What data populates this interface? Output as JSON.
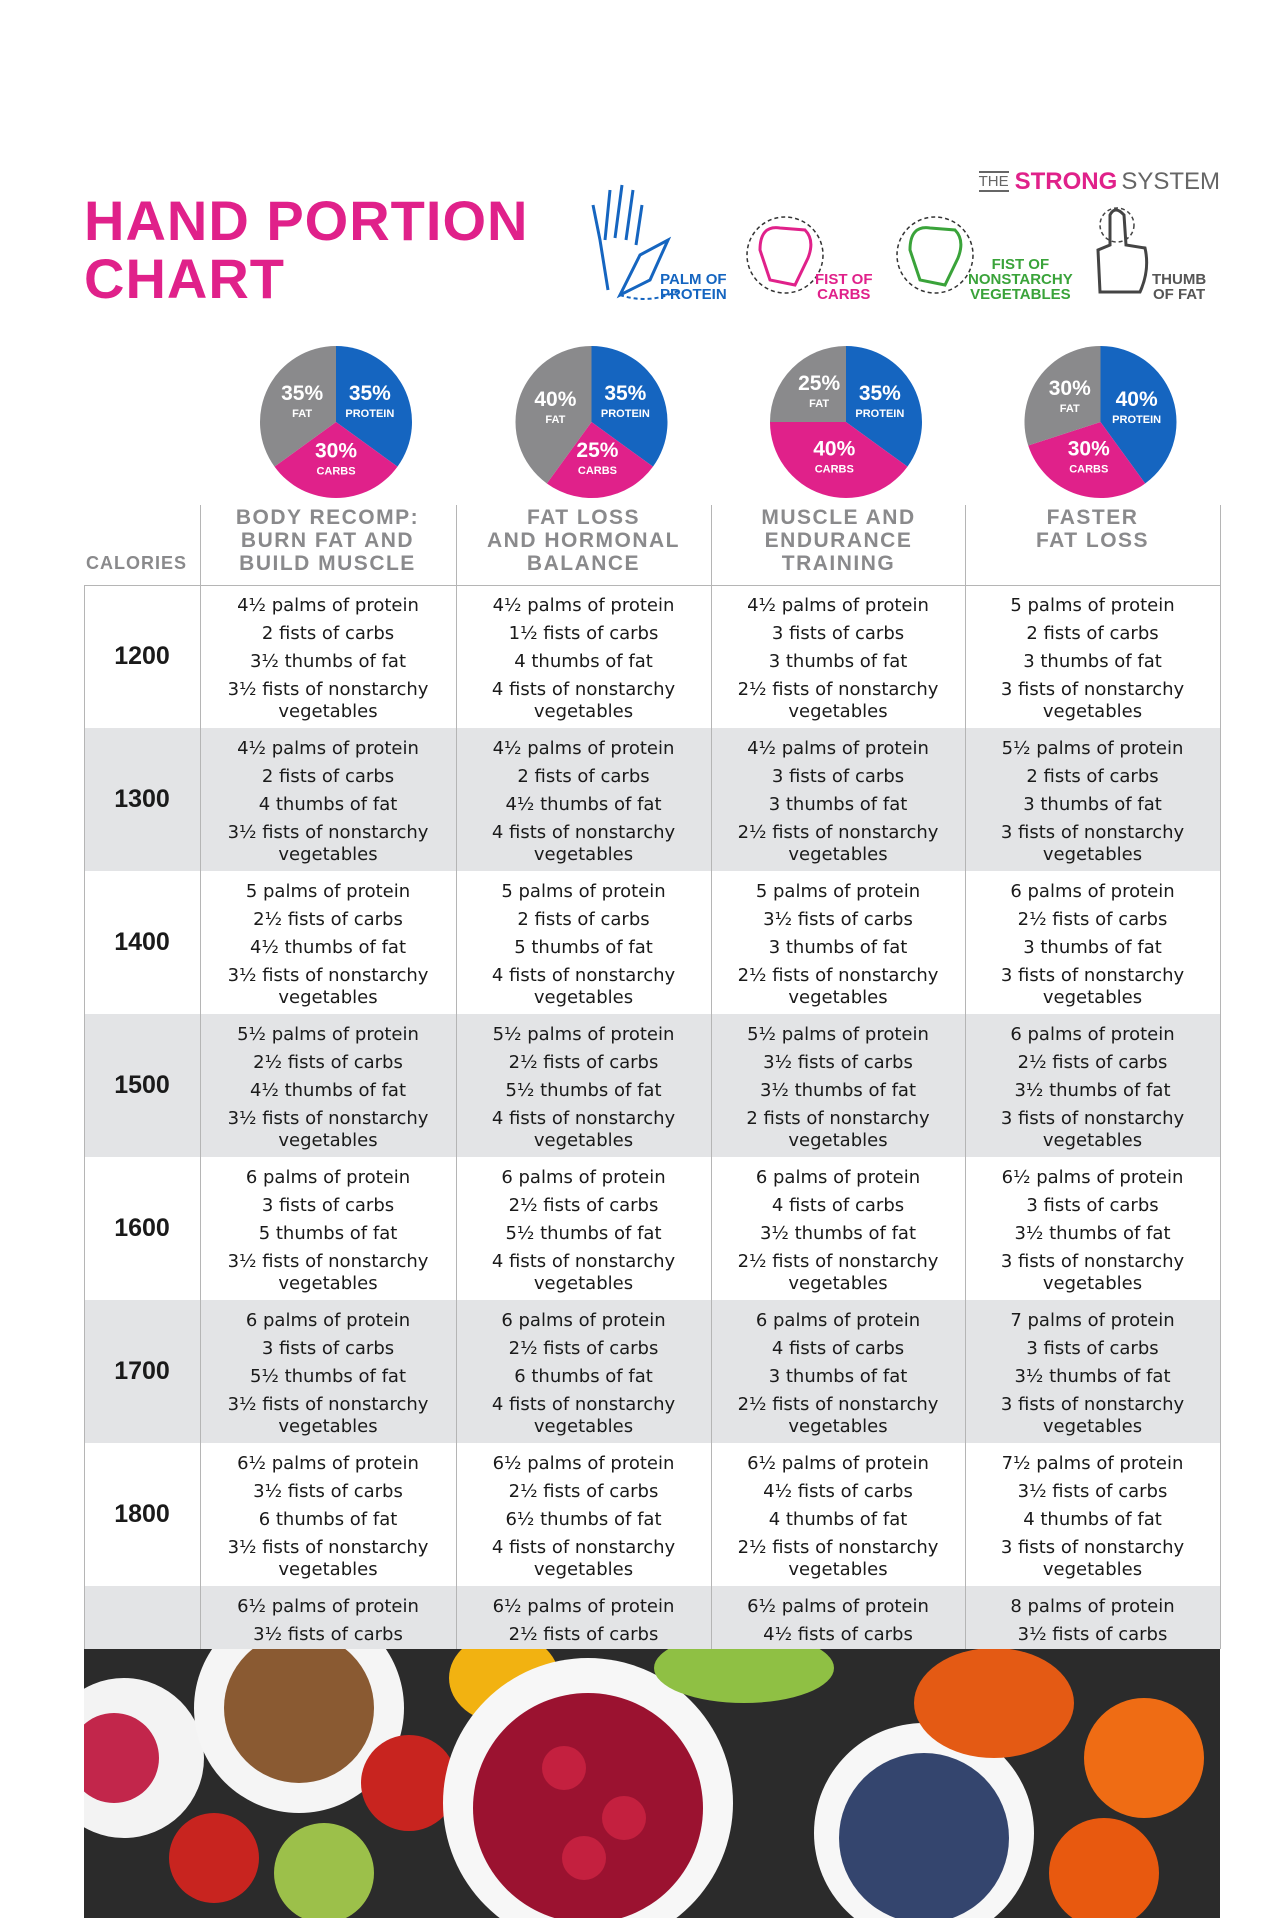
{
  "brand": {
    "prefix": "THE",
    "name": "STRONG",
    "suffix": "SYSTEM"
  },
  "title": [
    "HAND PORTION",
    "CHART"
  ],
  "legend": [
    {
      "lines": [
        "PALM OF",
        "PROTEIN"
      ],
      "color": "#1565c0"
    },
    {
      "lines": [
        "FIST OF",
        "CARBS"
      ],
      "color": "#e0218a"
    },
    {
      "lines": [
        "FIST OF",
        "NONSTARCHY",
        "VEGETABLES"
      ],
      "color": "#3aa33a"
    },
    {
      "lines": [
        "THUMB",
        "OF FAT"
      ],
      "color": "#555555"
    }
  ],
  "calories_label": "CALORIES",
  "plans": [
    {
      "header": [
        "BODY RECOMP:",
        "BURN FAT AND",
        "BUILD MUSCLE"
      ],
      "pie": {
        "type": "pie",
        "categories": [
          "PROTEIN",
          "CARBS",
          "FAT"
        ],
        "values": [
          35,
          30,
          35
        ],
        "value_labels": [
          "35%",
          "30%",
          "35%"
        ],
        "colors": [
          "#1565c0",
          "#e0218a",
          "#8a8a8c"
        ]
      }
    },
    {
      "header": [
        "FAT LOSS",
        "AND HORMONAL",
        "BALANCE"
      ],
      "pie": {
        "type": "pie",
        "categories": [
          "PROTEIN",
          "CARBS",
          "FAT"
        ],
        "values": [
          35,
          25,
          40
        ],
        "value_labels": [
          "35%",
          "25%",
          "40%"
        ],
        "colors": [
          "#1565c0",
          "#e0218a",
          "#8a8a8c"
        ]
      }
    },
    {
      "header": [
        "MUSCLE AND",
        "ENDURANCE",
        "TRAINING"
      ],
      "pie": {
        "type": "pie",
        "categories": [
          "PROTEIN",
          "CARBS",
          "FAT"
        ],
        "values": [
          35,
          40,
          25
        ],
        "value_labels": [
          "35%",
          "40%",
          "25%"
        ],
        "colors": [
          "#1565c0",
          "#e0218a",
          "#8a8a8c"
        ]
      }
    },
    {
      "header": [
        "FASTER",
        "FAT LOSS"
      ],
      "pie": {
        "type": "pie",
        "categories": [
          "PROTEIN",
          "CARBS",
          "FAT"
        ],
        "values": [
          40,
          30,
          30
        ],
        "value_labels": [
          "40%",
          "30%",
          "30%"
        ],
        "colors": [
          "#1565c0",
          "#e0218a",
          "#8a8a8c"
        ]
      }
    }
  ],
  "rows": [
    {
      "calories": "1200",
      "cells": [
        [
          "4½ palms of protein",
          "2 fists of carbs",
          "3½ thumbs of fat",
          "3½ fists of nonstarchy vegetables"
        ],
        [
          "4½ palms of protein",
          "1½ fists of carbs",
          "4 thumbs of fat",
          "4 fists of nonstarchy vegetables"
        ],
        [
          "4½ palms of protein",
          "3 fists of carbs",
          "3 thumbs of fat",
          "2½ fists of nonstarchy vegetables"
        ],
        [
          "5 palms of protein",
          "2 fists of carbs",
          "3 thumbs of fat",
          "3 fists of nonstarchy vegetables"
        ]
      ]
    },
    {
      "calories": "1300",
      "cells": [
        [
          "4½ palms of protein",
          "2 fists of carbs",
          "4 thumbs of fat",
          "3½ fists of nonstarchy vegetables"
        ],
        [
          "4½ palms of protein",
          "2 fists of carbs",
          "4½ thumbs of fat",
          "4 fists of nonstarchy vegetables"
        ],
        [
          "4½ palms of protein",
          "3 fists of carbs",
          "3 thumbs of fat",
          "2½ fists of nonstarchy vegetables"
        ],
        [
          "5½ palms of protein",
          "2 fists of carbs",
          "3 thumbs of fat",
          "3 fists of nonstarchy vegetables"
        ]
      ]
    },
    {
      "calories": "1400",
      "cells": [
        [
          "5 palms of protein",
          "2½ fists of carbs",
          "4½ thumbs of fat",
          "3½ fists of nonstarchy vegetables"
        ],
        [
          "5 palms of protein",
          "2 fists of carbs",
          "5 thumbs of fat",
          "4 fists of nonstarchy vegetables"
        ],
        [
          "5 palms of protein",
          "3½ fists of carbs",
          "3 thumbs of fat",
          "2½ fists of nonstarchy vegetables"
        ],
        [
          "6 palms of protein",
          "2½ fists of carbs",
          "3 thumbs of fat",
          "3 fists of nonstarchy vegetables"
        ]
      ]
    },
    {
      "calories": "1500",
      "cells": [
        [
          "5½ palms of protein",
          "2½ fists of carbs",
          "4½ thumbs of fat",
          "3½ fists of nonstarchy vegetables"
        ],
        [
          "5½ palms of protein",
          "2½ fists of carbs",
          "5½ thumbs of fat",
          "4 fists of nonstarchy vegetables"
        ],
        [
          "5½ palms of protein",
          "3½ fists of carbs",
          "3½ thumbs of fat",
          "2 fists of nonstarchy vegetables"
        ],
        [
          "6 palms of protein",
          "2½ fists of carbs",
          "3½ thumbs of fat",
          "3 fists of nonstarchy vegetables"
        ]
      ]
    },
    {
      "calories": "1600",
      "cells": [
        [
          "6 palms of protein",
          "3 fists of carbs",
          "5 thumbs of fat",
          "3½ fists of nonstarchy vegetables"
        ],
        [
          "6 palms of protein",
          "2½ fists of carbs",
          "5½ thumbs of fat",
          "4 fists of nonstarchy vegetables"
        ],
        [
          "6 palms of protein",
          "4 fists of carbs",
          "3½ thumbs of fat",
          "2½ fists of nonstarchy vegetables"
        ],
        [
          "6½ palms of protein",
          "3 fists of carbs",
          "3½ thumbs of fat",
          "3 fists of nonstarchy vegetables"
        ]
      ]
    },
    {
      "calories": "1700",
      "cells": [
        [
          "6 palms of protein",
          "3 fists of carbs",
          "5½ thumbs of fat",
          "3½ fists of nonstarchy vegetables"
        ],
        [
          "6 palms of protein",
          "2½ fists of carbs",
          "6 thumbs of fat",
          "4 fists of nonstarchy vegetables"
        ],
        [
          "6 palms of protein",
          "4 fists of carbs",
          "3 thumbs of fat",
          "2½ fists of nonstarchy vegetables"
        ],
        [
          "7 palms of protein",
          "3 fists of carbs",
          "3½ thumbs of fat",
          "3 fists of nonstarchy vegetables"
        ]
      ]
    },
    {
      "calories": "1800",
      "cells": [
        [
          "6½ palms of protein",
          "3½ fists of carbs",
          "6 thumbs of fat",
          "3½ fists of nonstarchy vegetables"
        ],
        [
          "6½ palms of protein",
          "2½ fists of carbs",
          "6½ thumbs of fat",
          "4 fists of nonstarchy vegetables"
        ],
        [
          "6½ palms of protein",
          "4½ fists of carbs",
          "4 thumbs of fat",
          "2½ fists of nonstarchy vegetables"
        ],
        [
          "7½ palms of protein",
          "3½ fists of carbs",
          "4 thumbs of fat",
          "3 fists of nonstarchy vegetables"
        ]
      ]
    },
    {
      "calories": null,
      "cells": [
        [
          "6½ palms of protein",
          "3½ fists of carbs"
        ],
        [
          "6½ palms of protein",
          "2½ fists of carbs"
        ],
        [
          "6½ palms of protein",
          "4½ fists of carbs"
        ],
        [
          "8 palms of protein",
          "3½ fists of carbs"
        ]
      ]
    }
  ]
}
